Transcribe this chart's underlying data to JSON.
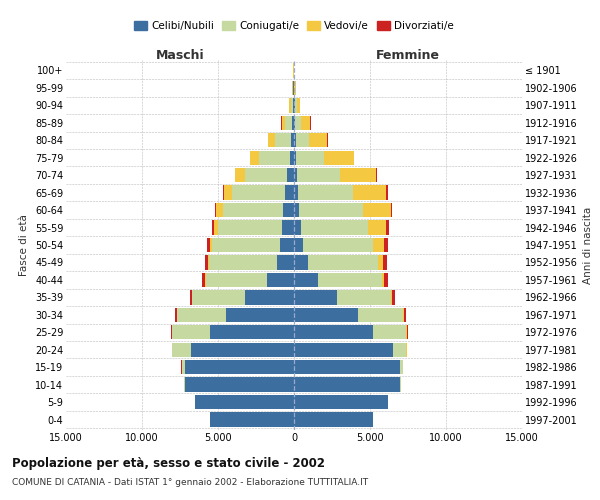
{
  "age_groups": [
    "0-4",
    "5-9",
    "10-14",
    "15-19",
    "20-24",
    "25-29",
    "30-34",
    "35-39",
    "40-44",
    "45-49",
    "50-54",
    "55-59",
    "60-64",
    "65-69",
    "70-74",
    "75-79",
    "80-84",
    "85-89",
    "90-94",
    "95-99",
    "100+"
  ],
  "birth_years": [
    "1997-2001",
    "1992-1996",
    "1987-1991",
    "1982-1986",
    "1977-1981",
    "1972-1976",
    "1967-1971",
    "1962-1966",
    "1957-1961",
    "1952-1956",
    "1947-1951",
    "1942-1946",
    "1937-1941",
    "1932-1936",
    "1927-1931",
    "1922-1926",
    "1917-1921",
    "1912-1916",
    "1907-1911",
    "1902-1906",
    "≤ 1901"
  ],
  "male_celibi": [
    5500,
    6500,
    7200,
    7200,
    6800,
    5500,
    4500,
    3200,
    1800,
    1100,
    900,
    800,
    700,
    600,
    450,
    280,
    180,
    120,
    80,
    50,
    20
  ],
  "male_coniugati": [
    2,
    5,
    20,
    200,
    1200,
    2500,
    3200,
    3500,
    4000,
    4500,
    4500,
    4200,
    4000,
    3500,
    2800,
    2000,
    1100,
    500,
    150,
    40,
    10
  ],
  "male_vedovi": [
    0,
    0,
    0,
    1,
    2,
    5,
    10,
    20,
    40,
    80,
    150,
    250,
    400,
    500,
    600,
    600,
    400,
    200,
    80,
    20,
    5
  ],
  "male_divorziati": [
    0,
    0,
    1,
    5,
    20,
    60,
    100,
    150,
    180,
    200,
    200,
    150,
    120,
    80,
    50,
    30,
    20,
    15,
    10,
    5,
    2
  ],
  "female_celibi": [
    5200,
    6200,
    7000,
    7000,
    6500,
    5200,
    4200,
    2800,
    1600,
    900,
    600,
    450,
    350,
    280,
    200,
    150,
    100,
    80,
    50,
    30,
    15
  ],
  "female_coniugati": [
    1,
    3,
    15,
    150,
    900,
    2200,
    3000,
    3600,
    4200,
    4600,
    4600,
    4400,
    4200,
    3600,
    2800,
    1800,
    900,
    400,
    120,
    30,
    5
  ],
  "female_vedovi": [
    0,
    0,
    0,
    1,
    3,
    10,
    25,
    60,
    150,
    350,
    700,
    1200,
    1800,
    2200,
    2400,
    2000,
    1200,
    600,
    200,
    50,
    10
  ],
  "female_divorziati": [
    0,
    0,
    1,
    5,
    20,
    60,
    120,
    180,
    250,
    300,
    280,
    200,
    130,
    80,
    50,
    30,
    20,
    15,
    8,
    3,
    1
  ],
  "color_celibi": "#3d6ea0",
  "color_coniugati": "#c5d9a0",
  "color_vedovi": "#f5c842",
  "color_divorziati": "#cc2222",
  "title_main": "Popolazione per età, sesso e stato civile - 2002",
  "title_sub": "COMUNE DI CATANIA - Dati ISTAT 1° gennaio 2002 - Elaborazione TUTTITALIA.IT",
  "ylabel_left": "Fasce di età",
  "ylabel_right": "Anni di nascita",
  "xlabel_left": "Maschi",
  "xlabel_right": "Femmine",
  "xlim": 15000,
  "background_color": "#ffffff",
  "grid_color": "#bbbbbb"
}
